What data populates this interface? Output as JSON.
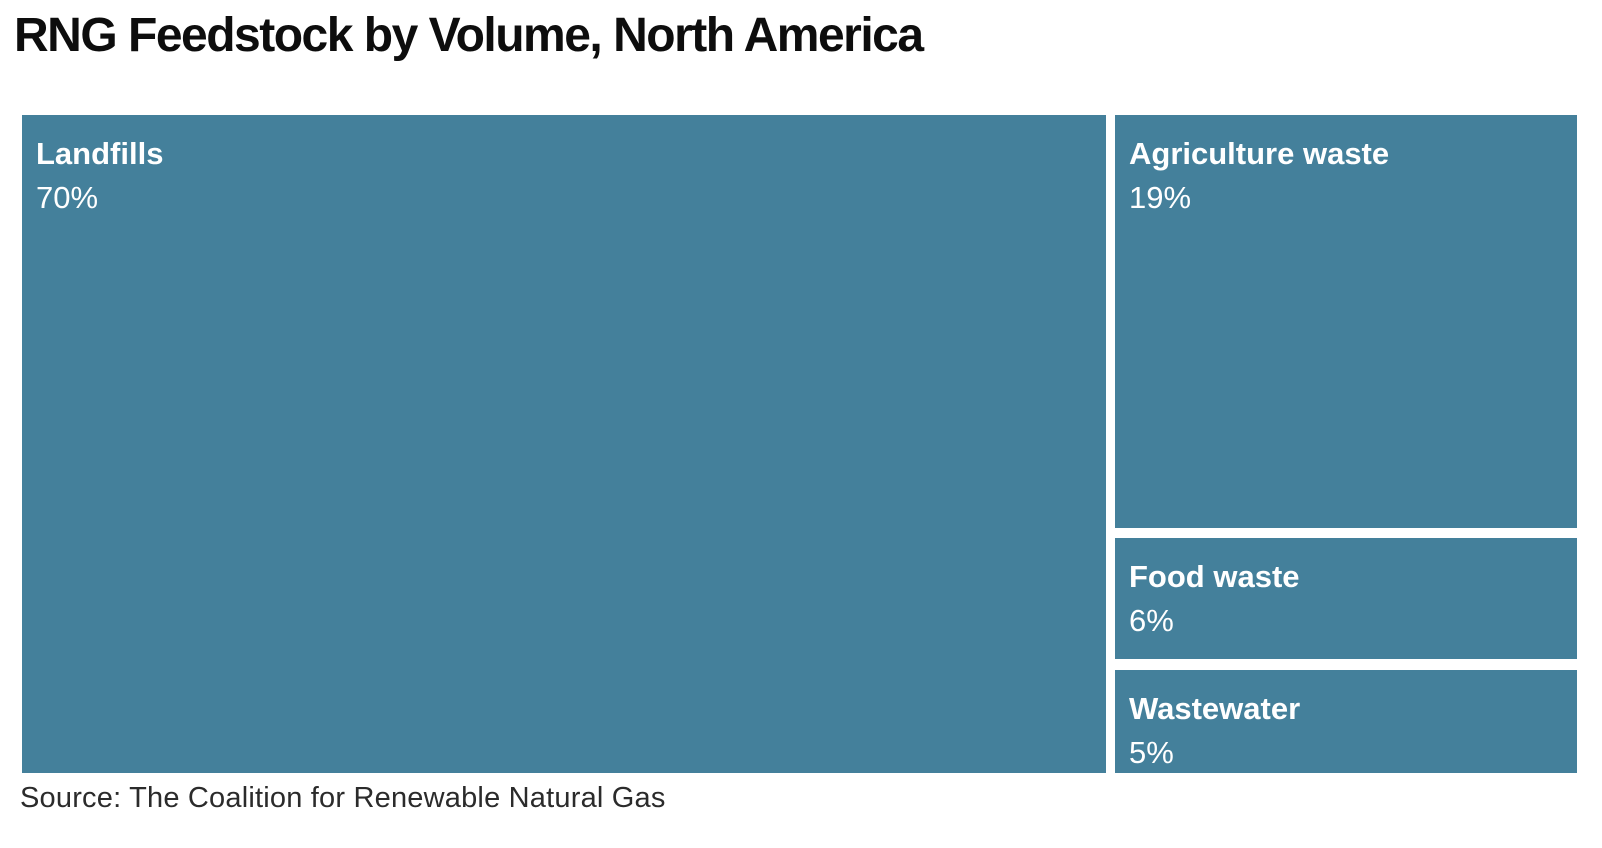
{
  "title": "RNG Feedstock by Volume, North America",
  "source_note": "Source: The Coalition for Renewable Natural Gas",
  "colors": {
    "tile_fill": "#44809b",
    "tile_text": "#ffffff",
    "title_text": "#0d0d0d",
    "source_text": "#2b2b2b",
    "background": "#ffffff"
  },
  "blocks": [
    {
      "label": "Landfills",
      "value": "70%"
    },
    {
      "label": "Agriculture waste",
      "value": "19%"
    },
    {
      "label": "Food waste",
      "value": "6%"
    },
    {
      "label": "Wastewater",
      "value": "5%"
    }
  ],
  "chart_data": {
    "type": "treemap",
    "title": "RNG Feedstock by Volume, North America",
    "categories": [
      "Landfills",
      "Agriculture waste",
      "Food waste",
      "Wastewater"
    ],
    "values": [
      70,
      19,
      6,
      5
    ],
    "unit": "%",
    "source": "The Coalition for Renewable Natural Gas",
    "layout": "single large tile left (70%), right column stacked top-to-bottom (19%, 6%, 5%), white gutters between tiles",
    "tile_color": "#44809b",
    "label_position": "top-left of each tile: bold name line, regular percent line"
  }
}
